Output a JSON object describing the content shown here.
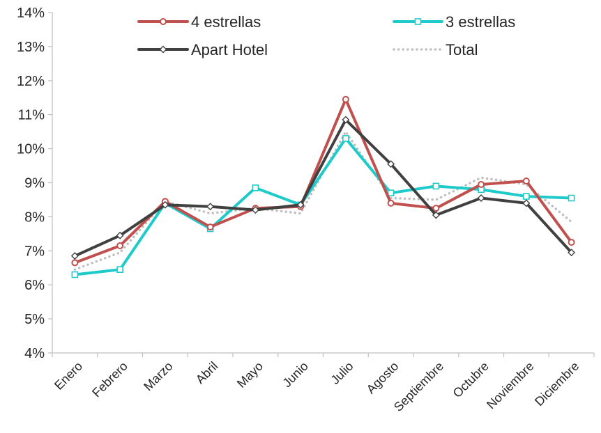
{
  "chart_data": {
    "type": "line",
    "title": "",
    "xlabel": "",
    "ylabel": "",
    "categories": [
      "Enero",
      "Febrero",
      "Marzo",
      "Abril",
      "Mayo",
      "Junio",
      "Julio",
      "Agosto",
      "Septiembre",
      "Octubre",
      "Noviembre",
      "Diciembre"
    ],
    "y_ticks": [
      "4%",
      "5%",
      "6%",
      "7%",
      "8%",
      "9%",
      "10%",
      "11%",
      "12%",
      "13%",
      "14%"
    ],
    "ylim": [
      4,
      14
    ],
    "y_unit": "%",
    "grid": false,
    "legend_position": "top",
    "series": [
      {
        "name": "4 estrellas",
        "color": "#c0504d",
        "marker": "circle",
        "values": [
          6.65,
          7.15,
          8.45,
          7.7,
          8.25,
          8.3,
          11.45,
          8.4,
          8.25,
          8.95,
          9.05,
          7.25
        ]
      },
      {
        "name": "3 estrellas",
        "color": "#1fcacb",
        "marker": "square",
        "values": [
          6.3,
          6.45,
          8.4,
          7.65,
          8.85,
          8.35,
          10.3,
          8.7,
          8.9,
          8.8,
          8.6,
          8.55
        ]
      },
      {
        "name": "Apart Hotel",
        "color": "#404040",
        "marker": "diamond",
        "values": [
          6.85,
          7.45,
          8.35,
          8.3,
          8.2,
          8.35,
          10.85,
          9.55,
          8.05,
          8.55,
          8.4,
          6.95
        ]
      },
      {
        "name": "Total",
        "color": "#bfbfbf",
        "marker": "none",
        "dashed": true,
        "values": [
          6.45,
          6.95,
          8.45,
          8.1,
          8.25,
          8.1,
          10.5,
          8.55,
          8.5,
          9.15,
          8.95,
          7.85
        ]
      }
    ]
  }
}
